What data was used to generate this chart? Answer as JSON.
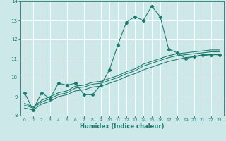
{
  "title": "",
  "xlabel": "Humidex (Indice chaleur)",
  "bg_color": "#cce8e8",
  "grid_color": "#ffffff",
  "line_color": "#1a7a6e",
  "marker_color": "#1a7a6e",
  "xlim": [
    -0.5,
    23.5
  ],
  "ylim": [
    8.0,
    14.0
  ],
  "yticks": [
    8,
    9,
    10,
    11,
    12,
    13,
    14
  ],
  "xticks": [
    0,
    1,
    2,
    3,
    4,
    5,
    6,
    7,
    8,
    9,
    10,
    11,
    12,
    13,
    14,
    15,
    16,
    17,
    18,
    19,
    20,
    21,
    22,
    23
  ],
  "series1_x": [
    0,
    1,
    2,
    3,
    4,
    5,
    6,
    7,
    8,
    9,
    10,
    11,
    12,
    13,
    14,
    15,
    16,
    17,
    18,
    19,
    20,
    21,
    22,
    23
  ],
  "series1_y": [
    9.2,
    8.3,
    9.2,
    8.9,
    9.7,
    9.6,
    9.7,
    9.1,
    9.1,
    9.6,
    10.4,
    11.7,
    12.9,
    13.2,
    13.0,
    13.75,
    13.2,
    11.5,
    11.3,
    11.0,
    11.1,
    11.2,
    11.2,
    11.2
  ],
  "series2_x": [
    0,
    1,
    2,
    3,
    4,
    5,
    6,
    7,
    8,
    9,
    10,
    11,
    12,
    13,
    14,
    15,
    16,
    17,
    18,
    19,
    20,
    21,
    22,
    23
  ],
  "series2_y": [
    8.4,
    8.3,
    8.6,
    8.75,
    9.0,
    9.1,
    9.3,
    9.35,
    9.5,
    9.55,
    9.7,
    9.85,
    10.05,
    10.2,
    10.4,
    10.55,
    10.7,
    10.85,
    10.95,
    11.05,
    11.1,
    11.15,
    11.2,
    11.2
  ],
  "series3_x": [
    0,
    1,
    2,
    3,
    4,
    5,
    6,
    7,
    8,
    9,
    10,
    11,
    12,
    13,
    14,
    15,
    16,
    17,
    18,
    19,
    20,
    21,
    22,
    23
  ],
  "series3_y": [
    8.55,
    8.4,
    8.7,
    8.9,
    9.1,
    9.2,
    9.45,
    9.5,
    9.65,
    9.7,
    9.85,
    10.0,
    10.2,
    10.35,
    10.6,
    10.75,
    10.9,
    11.05,
    11.15,
    11.2,
    11.25,
    11.3,
    11.35,
    11.35
  ],
  "series4_x": [
    0,
    1,
    2,
    3,
    4,
    5,
    6,
    7,
    8,
    9,
    10,
    11,
    12,
    13,
    14,
    15,
    16,
    17,
    18,
    19,
    20,
    21,
    22,
    23
  ],
  "series4_y": [
    8.65,
    8.45,
    8.8,
    9.0,
    9.2,
    9.3,
    9.55,
    9.6,
    9.75,
    9.8,
    9.95,
    10.1,
    10.3,
    10.45,
    10.7,
    10.85,
    11.0,
    11.15,
    11.25,
    11.3,
    11.35,
    11.4,
    11.45,
    11.45
  ]
}
